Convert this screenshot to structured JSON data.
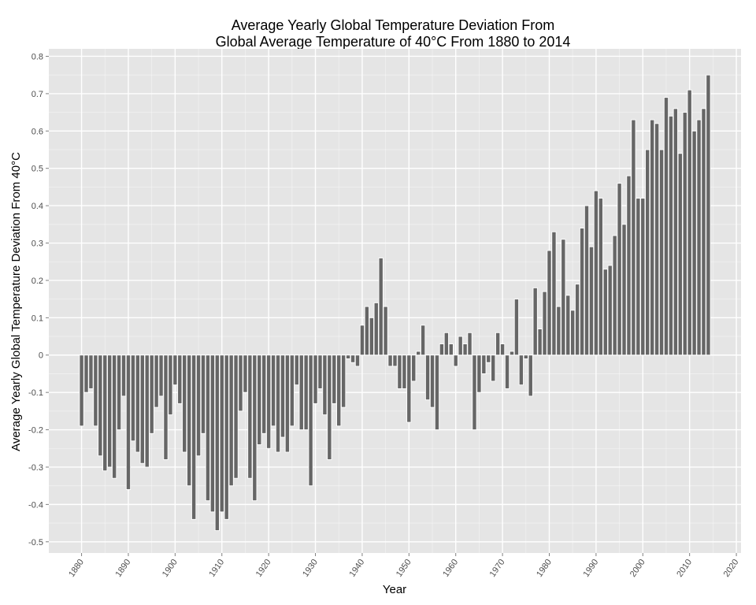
{
  "chart_data": {
    "type": "bar",
    "title_lines": [
      "Average Yearly Global Temperature Deviation From",
      "Global Average Temperature of 40°C From 1880 to 2014"
    ],
    "xlabel": "Year",
    "ylabel": "Average Yearly Global Temperature Deviation From 40°C",
    "xlim": [
      1873,
      2021
    ],
    "ylim": [
      -0.53,
      0.82
    ],
    "x_ticks": [
      1880,
      1890,
      1900,
      1910,
      1920,
      1930,
      1940,
      1950,
      1960,
      1970,
      1980,
      1990,
      2000,
      2010,
      2020
    ],
    "y_ticks": [
      -0.5,
      -0.4,
      -0.3,
      -0.2,
      -0.1,
      0,
      0.1,
      0.2,
      0.3,
      0.4,
      0.5,
      0.6,
      0.7,
      0.8
    ],
    "y_tick_labels": [
      "-0.5",
      "-0.4",
      "-0.3",
      "-0.2",
      "-0.1",
      "0",
      "0.1",
      "0.2",
      "0.3",
      "0.4",
      "0.5",
      "0.6",
      "0.7",
      "0.8"
    ],
    "grid": true,
    "colors": {
      "bar_fill": "#666666",
      "bar_outline": "#ffffff",
      "panel": "#e5e5e5",
      "grid": "#ffffff"
    },
    "x": [
      1880,
      1881,
      1882,
      1883,
      1884,
      1885,
      1886,
      1887,
      1888,
      1889,
      1890,
      1891,
      1892,
      1893,
      1894,
      1895,
      1896,
      1897,
      1898,
      1899,
      1900,
      1901,
      1902,
      1903,
      1904,
      1905,
      1906,
      1907,
      1908,
      1909,
      1910,
      1911,
      1912,
      1913,
      1914,
      1915,
      1916,
      1917,
      1918,
      1919,
      1920,
      1921,
      1922,
      1923,
      1924,
      1925,
      1926,
      1927,
      1928,
      1929,
      1930,
      1931,
      1932,
      1933,
      1934,
      1935,
      1936,
      1937,
      1938,
      1939,
      1940,
      1941,
      1942,
      1943,
      1944,
      1945,
      1946,
      1947,
      1948,
      1949,
      1950,
      1951,
      1952,
      1953,
      1954,
      1955,
      1956,
      1957,
      1958,
      1959,
      1960,
      1961,
      1962,
      1963,
      1964,
      1965,
      1966,
      1967,
      1968,
      1969,
      1970,
      1971,
      1972,
      1973,
      1974,
      1975,
      1976,
      1977,
      1978,
      1979,
      1980,
      1981,
      1982,
      1983,
      1984,
      1985,
      1986,
      1987,
      1988,
      1989,
      1990,
      1991,
      1992,
      1993,
      1994,
      1995,
      1996,
      1997,
      1998,
      1999,
      2000,
      2001,
      2002,
      2003,
      2004,
      2005,
      2006,
      2007,
      2008,
      2009,
      2010,
      2011,
      2012,
      2013,
      2014
    ],
    "values": [
      -0.19,
      -0.1,
      -0.09,
      -0.19,
      -0.27,
      -0.31,
      -0.3,
      -0.33,
      -0.2,
      -0.11,
      -0.36,
      -0.23,
      -0.26,
      -0.29,
      -0.3,
      -0.21,
      -0.14,
      -0.11,
      -0.28,
      -0.16,
      -0.08,
      -0.13,
      -0.26,
      -0.35,
      -0.44,
      -0.27,
      -0.21,
      -0.39,
      -0.42,
      -0.47,
      -0.42,
      -0.44,
      -0.35,
      -0.33,
      -0.15,
      -0.1,
      -0.33,
      -0.39,
      -0.24,
      -0.21,
      -0.25,
      -0.19,
      -0.26,
      -0.22,
      -0.26,
      -0.19,
      -0.08,
      -0.2,
      -0.2,
      -0.35,
      -0.13,
      -0.09,
      -0.16,
      -0.28,
      -0.13,
      -0.19,
      -0.14,
      -0.01,
      -0.02,
      -0.03,
      0.08,
      0.13,
      0.1,
      0.14,
      0.26,
      0.13,
      -0.03,
      -0.03,
      -0.09,
      -0.09,
      -0.18,
      -0.07,
      0.01,
      0.08,
      -0.12,
      -0.14,
      -0.2,
      0.03,
      0.06,
      0.03,
      -0.03,
      0.05,
      0.03,
      0.06,
      -0.2,
      -0.1,
      -0.05,
      -0.02,
      -0.07,
      0.06,
      0.03,
      -0.09,
      0.01,
      0.15,
      -0.08,
      -0.01,
      -0.11,
      0.18,
      0.07,
      0.17,
      0.28,
      0.33,
      0.13,
      0.31,
      0.16,
      0.12,
      0.19,
      0.34,
      0.4,
      0.29,
      0.44,
      0.42,
      0.23,
      0.24,
      0.32,
      0.46,
      0.35,
      0.48,
      0.63,
      0.42,
      0.42,
      0.55,
      0.63,
      0.62,
      0.55,
      0.69,
      0.64,
      0.66,
      0.54,
      0.65,
      0.71,
      0.6,
      0.63,
      0.66,
      0.75
    ]
  }
}
